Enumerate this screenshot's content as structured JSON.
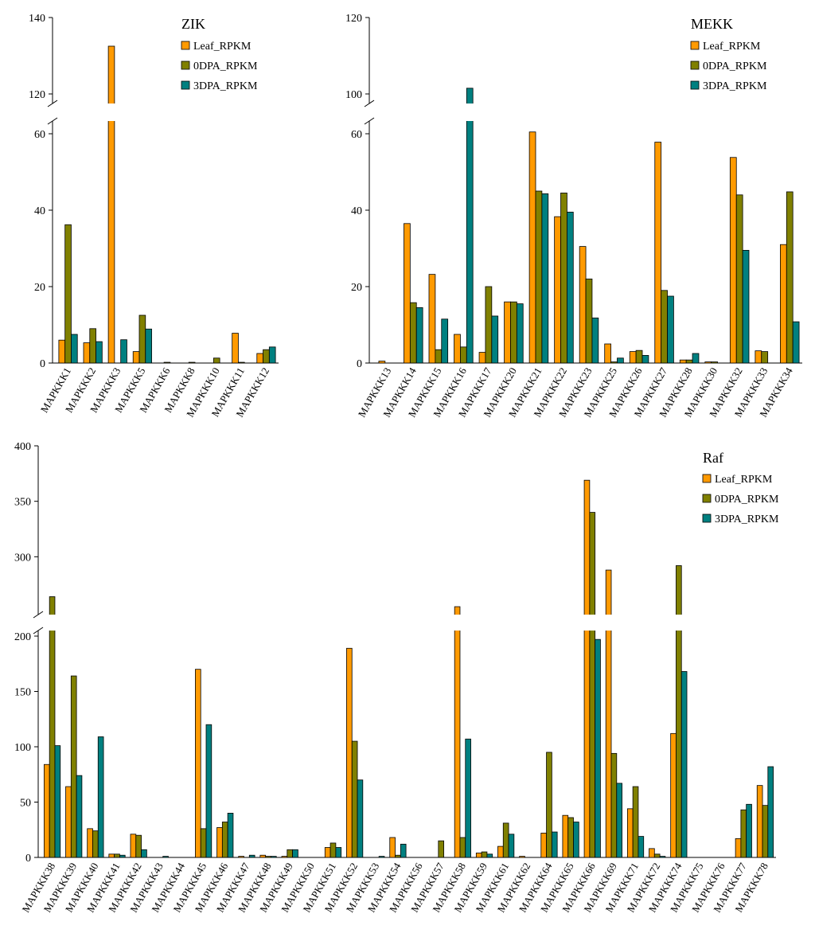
{
  "colors": {
    "leaf": "#FF9A00",
    "dpa0": "#808000",
    "dpa3": "#008080",
    "bar_stroke": "#000000"
  },
  "chart_data": [
    {
      "type": "bar",
      "title": "ZIK",
      "legend_position": "top-right",
      "axis_break": {
        "lower_range": [
          0,
          60
        ],
        "upper_range": [
          120,
          140
        ]
      },
      "yticks": [
        0,
        20,
        40,
        60,
        120,
        140
      ],
      "categories": [
        "MAPKKK1",
        "MAPKKK2",
        "MAPKKK3",
        "MAPKKK5",
        "MAPKKK6",
        "MAPKKK8",
        "MAPKKK10",
        "MAPKKK11",
        "MAPKKK12"
      ],
      "series": [
        {
          "name": "Leaf_RPKM",
          "values": [
            6,
            5.3,
            132.5,
            3,
            0,
            0,
            0,
            7.8,
            2.5
          ]
        },
        {
          "name": "0DPA_RPKM",
          "values": [
            36.2,
            9,
            0,
            12.5,
            0.2,
            0.2,
            1.3,
            0.2,
            3.5
          ]
        },
        {
          "name": "3DPA_RPKM",
          "values": [
            7.5,
            5.6,
            6.1,
            8.9,
            0,
            0,
            0,
            0,
            4.2
          ]
        }
      ]
    },
    {
      "type": "bar",
      "title": "MEKK",
      "legend_position": "top-right",
      "axis_break": {
        "lower_range": [
          0,
          60
        ],
        "upper_range": [
          100,
          120
        ]
      },
      "yticks": [
        0,
        20,
        40,
        60,
        100,
        120
      ],
      "categories": [
        "MAPKKK13",
        "MAPKKK14",
        "MAPKKK15",
        "MAPKKK16",
        "MAPKKK17",
        "MAPKKK20",
        "MAPKKK21",
        "MAPKKK22",
        "MAPKKK23",
        "MAPKKK25",
        "MAPKKK26",
        "MAPKKK27",
        "MAPKKK28",
        "MAPKKK30",
        "MAPKKK32",
        "MAPKKK33",
        "MAPKKK34"
      ],
      "series": [
        {
          "name": "Leaf_RPKM",
          "values": [
            0.5,
            36.5,
            23.2,
            7.5,
            2.8,
            16,
            61.8,
            38.3,
            30.5,
            5,
            3,
            57.8,
            0.8,
            0.3,
            53.8,
            3.2,
            31
          ]
        },
        {
          "name": "0DPA_RPKM",
          "values": [
            0,
            15.8,
            3.5,
            4.2,
            20,
            16,
            45,
            44.5,
            22,
            0.3,
            3.3,
            19,
            0.8,
            0.3,
            44,
            3,
            44.8
          ]
        },
        {
          "name": "3DPA_RPKM",
          "values": [
            0,
            14.5,
            11.5,
            101.5,
            12.3,
            15.5,
            44.3,
            39.5,
            11.8,
            1.3,
            2,
            17.5,
            2.5,
            0,
            29.5,
            0,
            10.8
          ]
        }
      ]
    },
    {
      "type": "bar",
      "title": "Raf",
      "legend_position": "top-right",
      "axis_break": {
        "lower_range": [
          0,
          200
        ],
        "upper_range": [
          250,
          400
        ]
      },
      "yticks": [
        0,
        50,
        100,
        150,
        200,
        300,
        350,
        400
      ],
      "categories": [
        "MAPKKK38",
        "MAPKKK39",
        "MAPKKK40",
        "MAPKKK41",
        "MAPKKK42",
        "MAPKKK43",
        "MAPKKK44",
        "MAPKKK45",
        "MAPKKK46",
        "MAPKKK47",
        "MAPKKK48",
        "MAPKKK49",
        "MAPKKK50",
        "MAPKKK51",
        "MAPKKK52",
        "MAPKKK53",
        "MAPKKK54",
        "MAPKKK56",
        "MAPKKK57",
        "MAPKKK58",
        "MAPKKK59",
        "MAPKKK61",
        "MAPKKK62",
        "MAPKKK64",
        "MAPKKK65",
        "MAPKKK66",
        "MAPKKK69",
        "MAPKKK71",
        "MAPKKK72",
        "MAPKKK74",
        "MAPKKK75",
        "MAPKKK76",
        "MAPKKK77",
        "MAPKKK78"
      ],
      "series": [
        {
          "name": "Leaf_RPKM",
          "values": [
            84,
            64,
            26,
            3,
            21,
            0,
            0,
            170,
            27,
            1,
            2,
            1,
            0,
            9,
            189,
            0,
            18,
            0,
            0,
            255,
            4,
            10,
            1,
            22,
            38,
            369,
            288,
            44,
            8,
            112,
            0,
            0,
            17,
            65
          ]
        },
        {
          "name": "0DPA_RPKM",
          "values": [
            264,
            164,
            24,
            3,
            20,
            0,
            0,
            26,
            32,
            0,
            1,
            7,
            0,
            13,
            105,
            0,
            2,
            0,
            15,
            18,
            5,
            31,
            0,
            95,
            36,
            340,
            94,
            64,
            3,
            292,
            0,
            0,
            43,
            47
          ]
        },
        {
          "name": "3DPA_RPKM",
          "values": [
            101,
            74,
            109,
            2,
            7,
            1,
            0,
            120,
            40,
            2,
            1,
            7,
            0,
            9,
            70,
            1,
            12,
            0,
            0,
            107,
            3,
            21,
            0,
            23,
            32,
            197,
            67,
            19,
            1,
            168,
            0,
            0,
            48,
            82
          ]
        }
      ]
    }
  ]
}
